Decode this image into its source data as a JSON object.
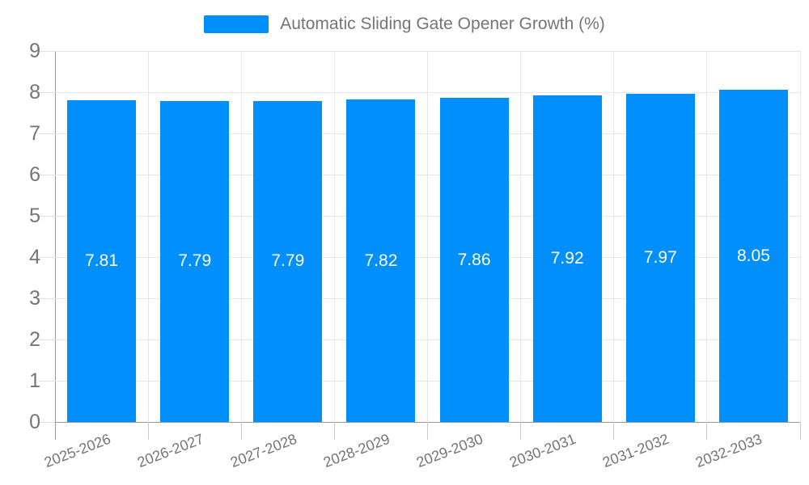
{
  "chart_data": {
    "type": "bar",
    "title": "Automatic Sliding Gate Opener Growth (%)",
    "categories": [
      "2025-2026",
      "2026-2027",
      "2027-2028",
      "2028-2029",
      "2029-2030",
      "2030-2031",
      "2031-2032",
      "2032-2033"
    ],
    "values": [
      7.81,
      7.79,
      7.79,
      7.82,
      7.86,
      7.92,
      7.97,
      8.05
    ],
    "value_labels": [
      "7.81",
      "7.79",
      "7.79",
      "7.82",
      "7.86",
      "7.92",
      "7.97",
      "8.05"
    ],
    "ylim": [
      0,
      9
    ],
    "ytick_step": 1,
    "ytick_labels": [
      "0",
      "1",
      "2",
      "3",
      "4",
      "5",
      "6",
      "7",
      "8",
      "9"
    ],
    "grid": true,
    "legend_position": "top",
    "colors": {
      "bar": "#008FFB",
      "value_label": "#ffffff",
      "axis_text": "#757575",
      "legend_text": "#757575",
      "axis_line": "#999999",
      "gridline": "#e7e7e7"
    }
  }
}
